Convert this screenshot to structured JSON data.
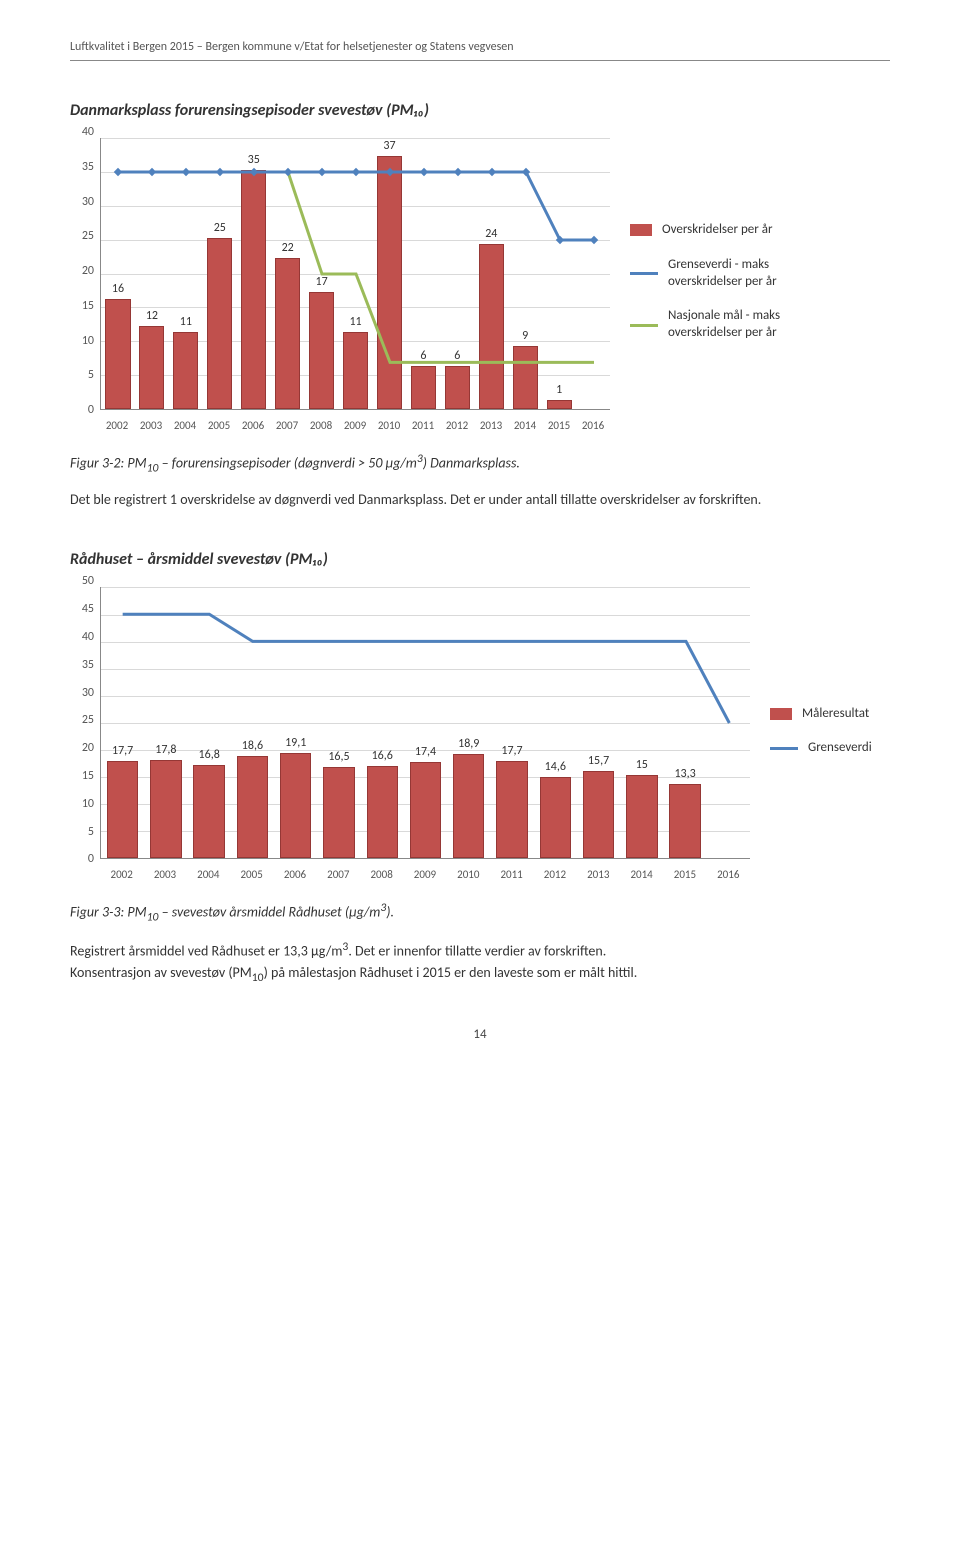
{
  "header": "Luftkvalitet i Bergen 2015 – Bergen kommune v/Etat for helsetjenester og Statens vegvesen",
  "page_number": "14",
  "chart1": {
    "title": "Danmarksplass forurensingsepisoder svevestøv (PM₁₀)",
    "type": "bar+line",
    "ymax": 40,
    "ystep": 5,
    "categories": [
      "2002",
      "2003",
      "2004",
      "2005",
      "2006",
      "2007",
      "2008",
      "2009",
      "2010",
      "2011",
      "2012",
      "2013",
      "2014",
      "2015",
      "2016"
    ],
    "bars": [
      16,
      12,
      11,
      25,
      35,
      22,
      17,
      11,
      37,
      6,
      6,
      24,
      9,
      1,
      null
    ],
    "bar_color": "#c0504d",
    "bar_border": "#953735",
    "line_green": {
      "color": "#9bbb59",
      "width": 3,
      "points": [
        35,
        35,
        35,
        35,
        35,
        35,
        20,
        20,
        7,
        7,
        7,
        7,
        7,
        7,
        7
      ]
    },
    "line_blue": {
      "color": "#4f81bd",
      "width": 3,
      "points": [
        35,
        35,
        35,
        35,
        35,
        35,
        35,
        35,
        35,
        35,
        35,
        35,
        35,
        25,
        25
      ]
    },
    "legend": [
      {
        "label": "Overskridelser per år",
        "type": "bar",
        "color": "#c0504d"
      },
      {
        "label": "Grenseverdi - maks overskridelser per år",
        "type": "line",
        "color": "#4f81bd"
      },
      {
        "label": "Nasjonale mål - maks overskridelser per år",
        "type": "line",
        "color": "#9bbb59"
      }
    ],
    "grid_color": "#d9d9d9",
    "tick_color": "#595959"
  },
  "caption1_pre": "Figur 3-2: PM",
  "caption1_sub1": "10",
  "caption1_mid": " – forurensingsepisoder (døgnverdi > 50 µg/m",
  "caption1_sup": "3",
  "caption1_post": ") Danmarksplass.",
  "para1": "Det ble registrert 1 overskridelse av døgnverdi ved Danmarksplass. Det er under antall tillatte overskridelser av forskriften.",
  "chart2": {
    "title": "Rådhuset – årsmiddel svevestøv (PM₁₀)",
    "type": "bar+line",
    "ymax": 50,
    "ystep": 5,
    "categories": [
      "2002",
      "2003",
      "2004",
      "2005",
      "2006",
      "2007",
      "2008",
      "2009",
      "2010",
      "2011",
      "2012",
      "2013",
      "2014",
      "2015",
      "2016"
    ],
    "bars": [
      17.7,
      17.8,
      16.8,
      18.6,
      19.1,
      16.5,
      16.6,
      17.4,
      18.9,
      17.7,
      14.6,
      15.7,
      15,
      13.3,
      null
    ],
    "bar_labels": [
      "17,7",
      "17,8",
      "16,8",
      "18,6",
      "19,1",
      "16,5",
      "16,6",
      "17,4",
      "18,9",
      "17,7",
      "14,6",
      "15,7",
      "15",
      "13,3",
      ""
    ],
    "bar_color": "#c0504d",
    "bar_border": "#953735",
    "line_blue": {
      "color": "#4f81bd",
      "width": 3,
      "points": [
        45,
        45,
        45,
        40,
        40,
        40,
        40,
        40,
        40,
        40,
        40,
        40,
        40,
        40,
        25
      ]
    },
    "legend": [
      {
        "label": "Måleresultat",
        "type": "bar",
        "color": "#c0504d"
      },
      {
        "label": "Grenseverdi",
        "type": "line",
        "color": "#4f81bd"
      }
    ],
    "grid_color": "#d9d9d9"
  },
  "caption2_pre": "Figur 3-3: PM",
  "caption2_sub1": "10",
  "caption2_mid": " – svevestøv årsmiddel Rådhuset (µg/m",
  "caption2_sup": "3",
  "caption2_post": ").",
  "para2a": "Registrert årsmiddel ved Rådhuset er 13,3 µg/m",
  "para2a_sup": "3",
  "para2a_post": ". Det er innenfor tillatte verdier av forskriften.",
  "para2b_pre": "Konsentrasjon av svevestøv (PM",
  "para2b_sub": "10",
  "para2b_post": ") på målestasjon Rådhuset i 2015 er den laveste som er målt hittil."
}
